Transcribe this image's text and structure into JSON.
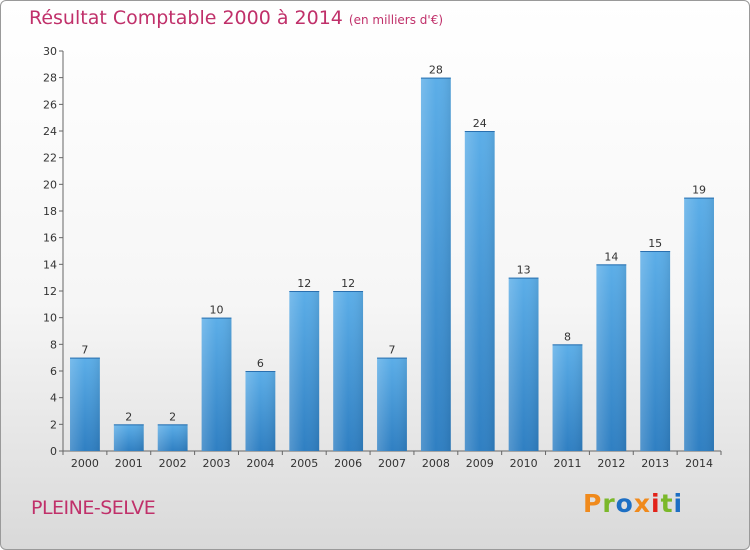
{
  "chart_data": {
    "type": "bar",
    "title": "Résultat Comptable 2000 à 2014",
    "subtitle": "(en milliers d'€)",
    "categories": [
      "2000",
      "2001",
      "2002",
      "2003",
      "2004",
      "2005",
      "2006",
      "2007",
      "2008",
      "2009",
      "2010",
      "2011",
      "2012",
      "2013",
      "2014"
    ],
    "values": [
      7,
      2,
      2,
      10,
      6,
      12,
      12,
      7,
      28,
      24,
      13,
      8,
      14,
      15,
      19
    ],
    "ylim": [
      0,
      30
    ],
    "yticks": [
      0,
      2,
      4,
      6,
      8,
      10,
      12,
      14,
      16,
      18,
      20,
      22,
      24,
      26,
      28,
      30
    ],
    "xlabel": "",
    "ylabel": "",
    "grid": false,
    "bar_color": "#4a9fe0",
    "title_color": "#c0306a"
  },
  "footer": {
    "place_name": "PLEINE-SELVE",
    "logo_text": "Proxiti"
  },
  "colors": {
    "logo_letters": [
      "#f08a1c",
      "#7bb82a",
      "#1d6fc4",
      "#f08a1c",
      "#e2231a",
      "#7bb82a",
      "#1d6fc4"
    ]
  }
}
